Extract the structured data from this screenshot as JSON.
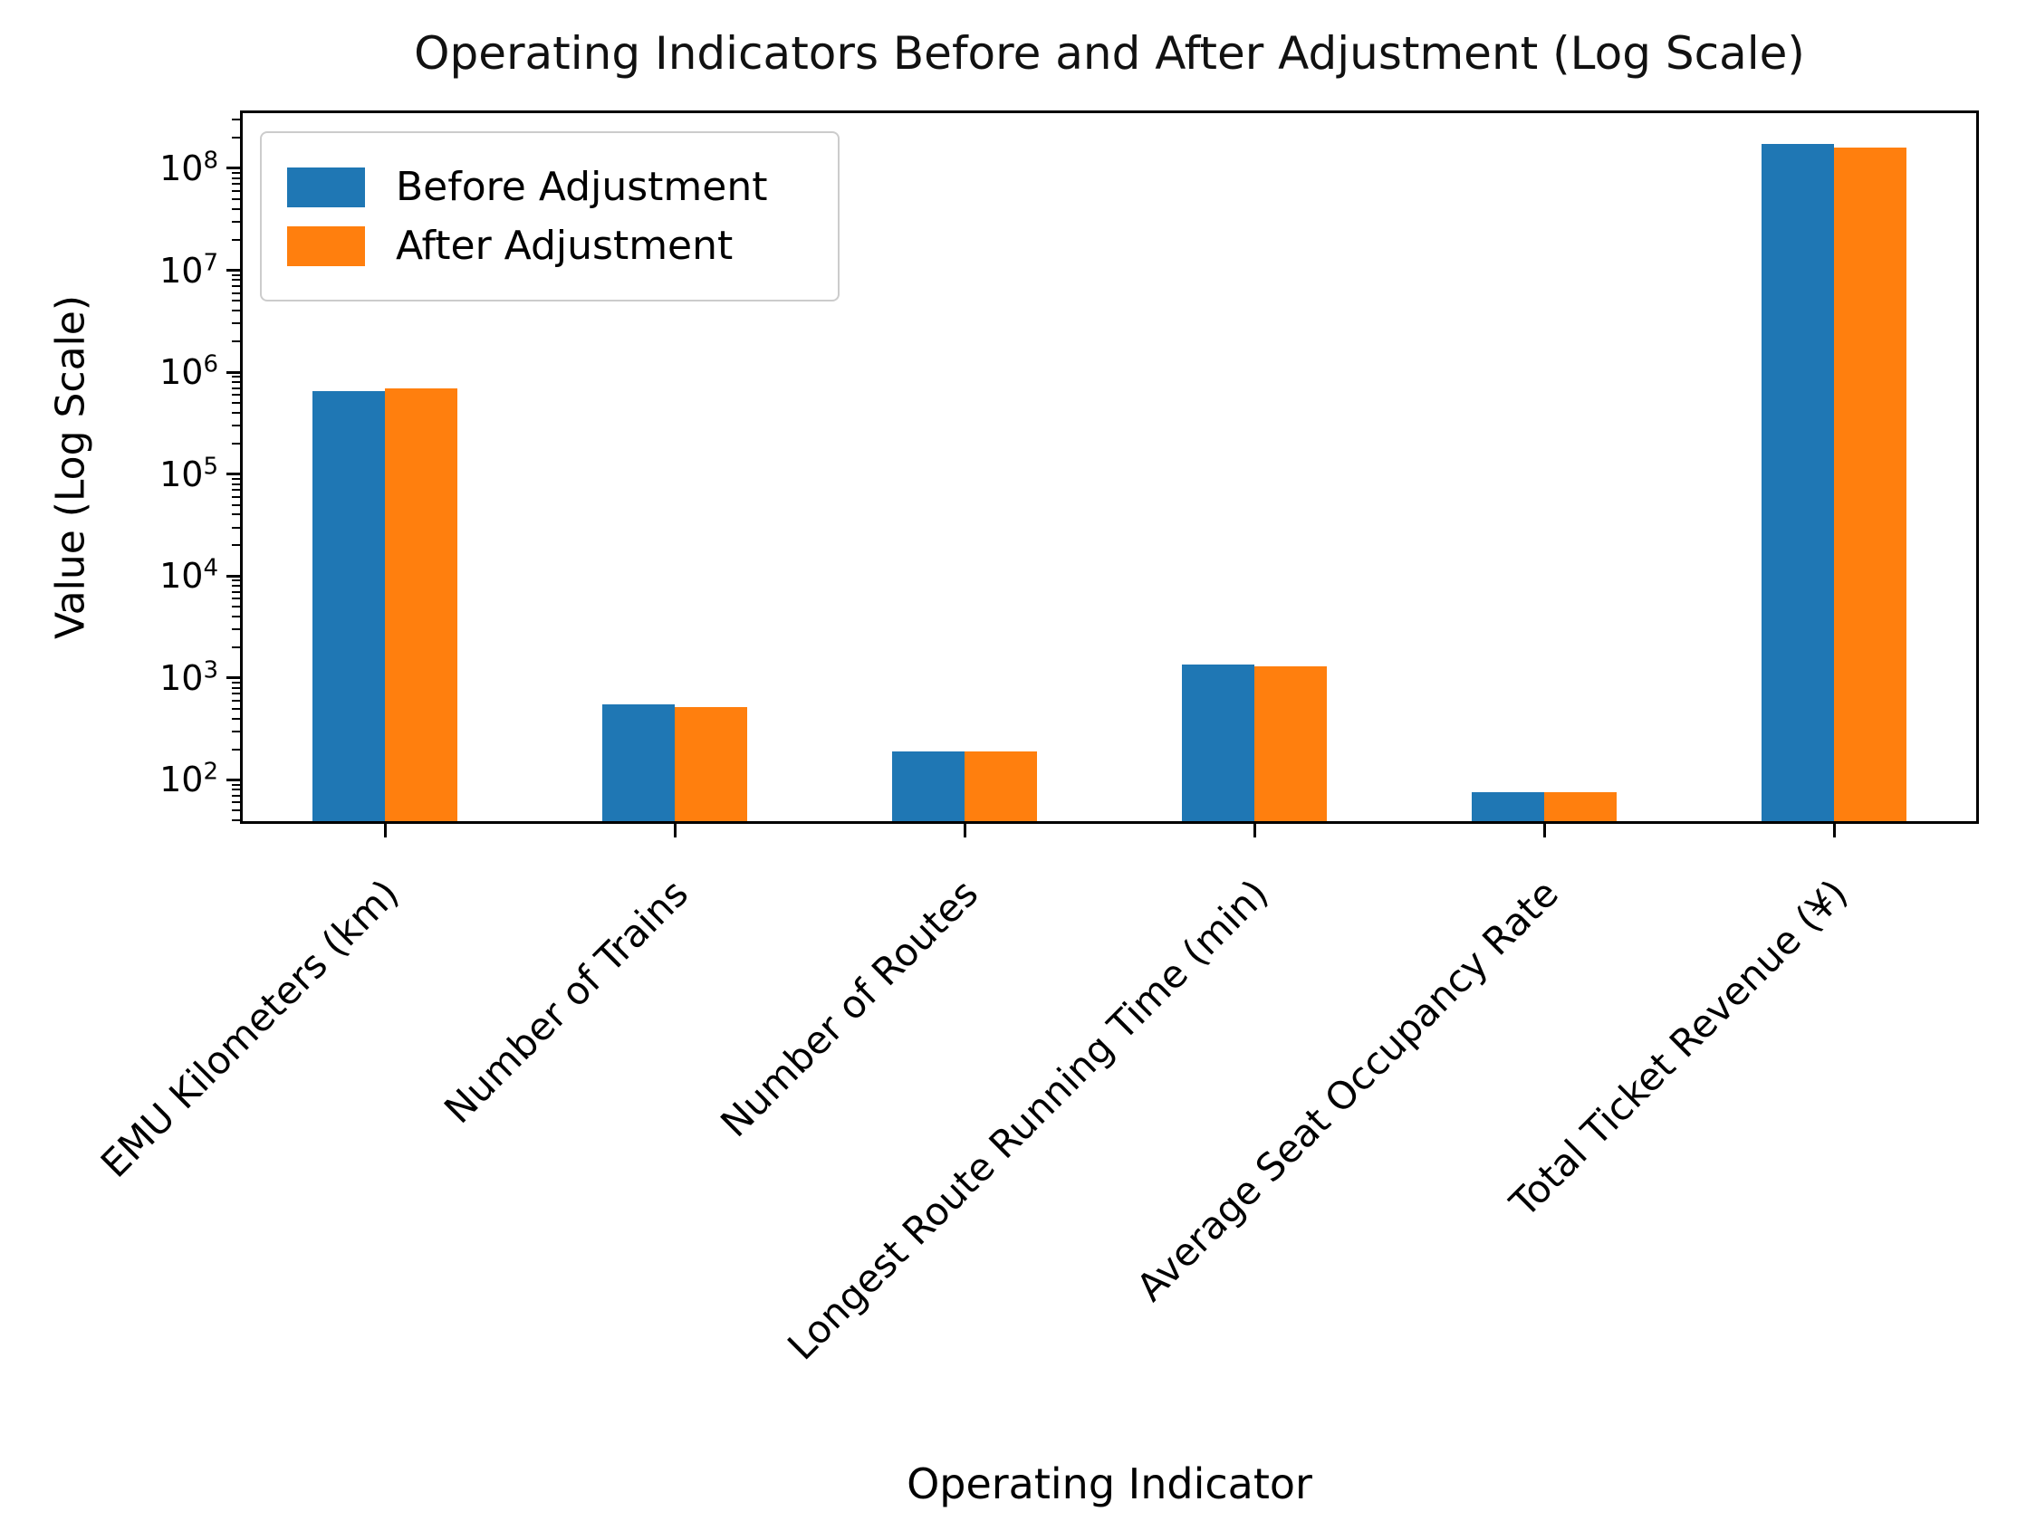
{
  "figure": {
    "title": "Operating Indicators Before and After Adjustment (Log Scale)",
    "xlabel": "Operating Indicator",
    "ylabel": "Value (Log Scale)"
  },
  "legend": {
    "items": [
      {
        "label": "Before Adjustment",
        "color": "#1f77b4"
      },
      {
        "label": "After Adjustment",
        "color": "#ff7f0e"
      }
    ]
  },
  "chart_data": {
    "type": "bar",
    "title": "Operating Indicators Before and After Adjustment (Log Scale)",
    "xlabel": "Operating Indicator",
    "ylabel": "Value (Log Scale)",
    "y_scale": "log",
    "ylim": [
      37,
      370000000
    ],
    "y_major_ticks": [
      100,
      1000,
      10000,
      100000,
      1000000,
      10000000,
      100000000
    ],
    "grid": false,
    "legend_position": "upper left",
    "bar_colors": {
      "before": "#1f77b4",
      "after": "#ff7f0e"
    },
    "categories": [
      "EMU Kilometers (km)",
      "Number of Trains",
      "Number of Routes",
      "Longest Route Running Time (min)",
      "Average Seat Occupancy Rate",
      "Total Ticket Revenue (¥)"
    ],
    "series": [
      {
        "name": "Before Adjustment",
        "color": "#1f77b4",
        "values": [
          650000,
          550,
          190,
          1350,
          76,
          175000000
        ]
      },
      {
        "name": "After Adjustment",
        "color": "#ff7f0e",
        "values": [
          700000,
          520,
          190,
          1300,
          75,
          160000000
        ]
      }
    ]
  }
}
